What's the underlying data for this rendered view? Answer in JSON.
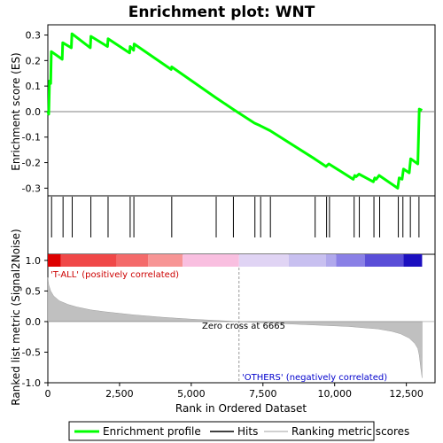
{
  "title": "Enrichment plot: WNT",
  "colors": {
    "enrichment_line": "#00ff00",
    "hits": "#000000",
    "metric_fill": "#c0c0c0",
    "pos_label": "#cc0000",
    "neg_label": "#0000cc",
    "zero_cross_line": "#999999"
  },
  "chart_data": [
    {
      "type": "line",
      "name": "enrichment-score-panel",
      "ylabel": "Enrichment score (ES)",
      "xlim": [
        0,
        13500
      ],
      "ylim": [
        -0.33,
        0.34
      ],
      "yticks": [
        0.3,
        0.2,
        0.1,
        0.0,
        -0.1,
        -0.2,
        -0.3
      ],
      "ytick_labels": [
        "0.3",
        "0.2",
        "0.1",
        "0.0",
        "-0.1",
        "-0.2",
        "-0.3"
      ],
      "series": [
        {
          "name": "Enrichment profile",
          "x": [
            0,
            30,
            60,
            100,
            120,
            500,
            520,
            820,
            840,
            1480,
            1500,
            2080,
            2100,
            2850,
            2870,
            2990,
            3010,
            4300,
            4320,
            5850,
            6450,
            7200,
            7400,
            7750,
            9300,
            9700,
            9750,
            9800,
            10650,
            10700,
            10750,
            10850,
            11350,
            11400,
            11450,
            11550,
            12200,
            12250,
            12350,
            12400,
            12600,
            12650,
            12900,
            12950,
            13050
          ],
          "y": [
            0.0,
            -0.01,
            0.12,
            0.11,
            0.235,
            0.205,
            0.27,
            0.25,
            0.305,
            0.25,
            0.295,
            0.255,
            0.285,
            0.23,
            0.255,
            0.24,
            0.265,
            0.165,
            0.175,
            0.055,
            0.01,
            -0.045,
            -0.055,
            -0.075,
            -0.185,
            -0.215,
            -0.21,
            -0.205,
            -0.265,
            -0.25,
            -0.255,
            -0.245,
            -0.275,
            -0.26,
            -0.265,
            -0.25,
            -0.3,
            -0.26,
            -0.265,
            -0.225,
            -0.24,
            -0.185,
            -0.205,
            0.01,
            0.005
          ]
        }
      ]
    },
    {
      "type": "scatter",
      "name": "hits-panel",
      "hit_positions": [
        130,
        530,
        850,
        1500,
        2100,
        2870,
        3000,
        4320,
        5870,
        6470,
        7220,
        7420,
        7760,
        9320,
        9720,
        9820,
        10680,
        10860,
        11370,
        11570,
        12220,
        12380,
        12640,
        12940
      ]
    },
    {
      "type": "area",
      "name": "ranked-metric-panel",
      "ylabel": "Ranked list metric (Signal2Noise)",
      "xlabel": "Rank in Ordered Dataset",
      "xlim": [
        0,
        13500
      ],
      "ylim": [
        -1.0,
        1.1
      ],
      "xticks": [
        0,
        2500,
        5000,
        7500,
        10000,
        12500
      ],
      "xtick_labels": [
        "0",
        "2,500",
        "5,000",
        "7,500",
        "10,000",
        "12,500"
      ],
      "yticks": [
        1.0,
        0.5,
        0.0,
        -0.5,
        -1.0
      ],
      "ytick_labels": [
        "1.0",
        "0.5",
        "0.0",
        "-0.5",
        "-1.0"
      ],
      "zero_cross": 6665,
      "zero_cross_label": "Zero cross at 6665",
      "positive_label": "'T-ALL' (positively correlated)",
      "negative_label": "'OTHERS' (negatively correlated)",
      "series": [
        {
          "name": "Ranking metric scores",
          "x": [
            0,
            30,
            100,
            200,
            400,
            700,
            1000,
            1500,
            2000,
            3000,
            4000,
            5000,
            6000,
            6665,
            7500,
            8500,
            9500,
            10500,
            11000,
            11500,
            12000,
            12300,
            12600,
            12800,
            12900,
            12950,
            13000,
            13050
          ],
          "y": [
            0.72,
            0.6,
            0.5,
            0.42,
            0.34,
            0.28,
            0.24,
            0.19,
            0.16,
            0.11,
            0.07,
            0.04,
            0.015,
            0.0,
            -0.02,
            -0.04,
            -0.06,
            -0.08,
            -0.1,
            -0.12,
            -0.16,
            -0.2,
            -0.27,
            -0.36,
            -0.44,
            -0.55,
            -0.75,
            -0.92
          ]
        }
      ]
    }
  ],
  "colorbar": {
    "segments": [
      {
        "from": 0,
        "to": 450,
        "color": "#dd0000"
      },
      {
        "from": 450,
        "to": 2400,
        "color": "#f04848"
      },
      {
        "from": 2400,
        "to": 3500,
        "color": "#f46a6a"
      },
      {
        "from": 3500,
        "to": 4700,
        "color": "#f79595"
      },
      {
        "from": 4700,
        "to": 6665,
        "color": "#f9bfe0"
      },
      {
        "from": 6665,
        "to": 8400,
        "color": "#e0d4f4"
      },
      {
        "from": 8400,
        "to": 9700,
        "color": "#c8c0f0"
      },
      {
        "from": 9700,
        "to": 10050,
        "color": "#b0a8ec"
      },
      {
        "from": 10050,
        "to": 11050,
        "color": "#8a80e6"
      },
      {
        "from": 11050,
        "to": 12400,
        "color": "#5a4ed8"
      },
      {
        "from": 12400,
        "to": 13050,
        "color": "#1c10c0"
      }
    ]
  },
  "legend": {
    "items": [
      {
        "label": "Enrichment profile",
        "color": "#00ff00"
      },
      {
        "label": "Hits",
        "color": "#000000"
      },
      {
        "label": "Ranking metric scores",
        "color": "#c0c0c0"
      }
    ]
  }
}
